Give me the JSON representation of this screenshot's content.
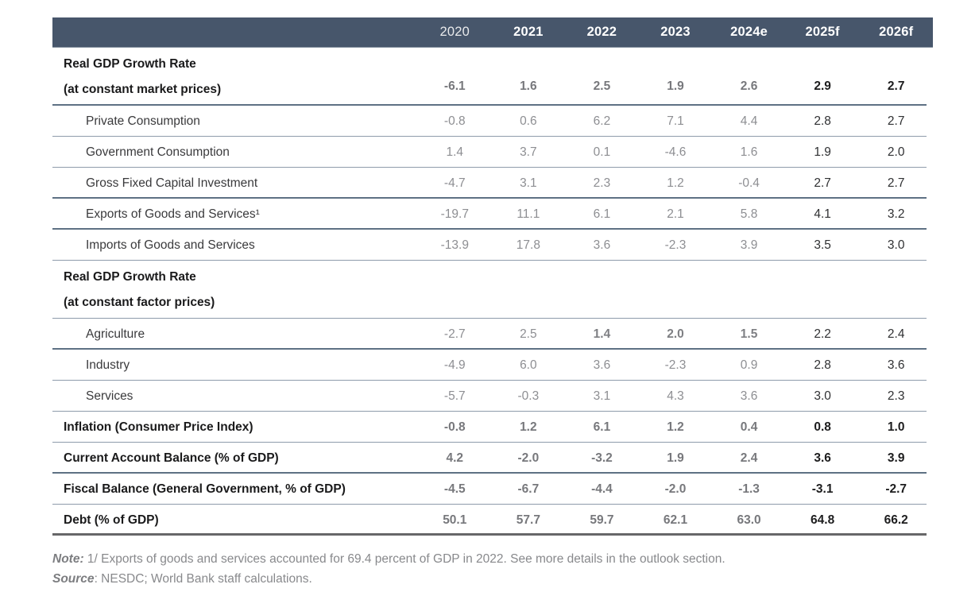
{
  "table": {
    "columns": [
      "2020",
      "2021",
      "2022",
      "2023",
      "2024e",
      "2025f",
      "2026f"
    ],
    "rows": [
      {
        "type": "section",
        "lines": [
          "Real GDP Growth Rate",
          "(at constant market prices)"
        ],
        "values": [
          "-6.1",
          "1.6",
          "2.5",
          "1.9",
          "2.6",
          "2.9",
          "2.7"
        ],
        "border": "thick"
      },
      {
        "type": "sub",
        "label": "Private Consumption",
        "values": [
          "-0.8",
          "0.6",
          "6.2",
          "7.1",
          "4.4",
          "2.8",
          "2.7"
        ],
        "border": "thin"
      },
      {
        "type": "sub",
        "label": "Government Consumption",
        "values": [
          "1.4",
          "3.7",
          "0.1",
          "-4.6",
          "1.6",
          "1.9",
          "2.0"
        ],
        "border": "thin"
      },
      {
        "type": "sub",
        "label": "Gross Fixed Capital Investment",
        "values": [
          "-4.7",
          "3.1",
          "2.3",
          "1.2",
          "-0.4",
          "2.7",
          "2.7"
        ],
        "border": "thick"
      },
      {
        "type": "sub",
        "label": "Exports of Goods and Services¹",
        "values": [
          "-19.7",
          "11.1",
          "6.1",
          "2.1",
          "5.8",
          "4.1",
          "3.2"
        ],
        "border": "thick"
      },
      {
        "type": "sub",
        "label": "Imports of Goods and Services",
        "values": [
          "-13.9",
          "17.8",
          "3.6",
          "-2.3",
          "3.9",
          "3.5",
          "3.0"
        ],
        "border": "thin"
      },
      {
        "type": "section",
        "lines": [
          "Real GDP Growth Rate",
          "(at constant factor prices)"
        ],
        "values": [
          "",
          "",
          "",
          "",
          "",
          "",
          ""
        ],
        "border": "thin"
      },
      {
        "type": "sub",
        "label": "Agriculture",
        "values": [
          "-2.7",
          "2.5",
          "1.4",
          "2.0",
          "1.5",
          "2.2",
          "2.4"
        ],
        "bold_cells": [
          2,
          3,
          4
        ],
        "border": "thick"
      },
      {
        "type": "sub",
        "label": "Industry",
        "values": [
          "-4.9",
          "6.0",
          "3.6",
          "-2.3",
          "0.9",
          "2.8",
          "3.6"
        ],
        "border": "thin"
      },
      {
        "type": "sub",
        "label": "Services",
        "values": [
          "-5.7",
          "-0.3",
          "3.1",
          "4.3",
          "3.6",
          "3.0",
          "2.3"
        ],
        "border": "thin"
      },
      {
        "type": "boldrow",
        "label": "Inflation (Consumer Price Index)",
        "values": [
          "-0.8",
          "1.2",
          "6.1",
          "1.2",
          "0.4",
          "0.8",
          "1.0"
        ],
        "border": "thin"
      },
      {
        "type": "boldrow",
        "label": "Current Account Balance (% of GDP)",
        "values": [
          "4.2",
          "-2.0",
          "-3.2",
          "1.9",
          "2.4",
          "3.6",
          "3.9"
        ],
        "border": "thick"
      },
      {
        "type": "boldrow",
        "label": "Fiscal Balance (General Government, % of GDP)",
        "values": [
          "-4.5",
          "-6.7",
          "-4.4",
          "-2.0",
          "-1.3",
          "-3.1",
          "-2.7"
        ],
        "border": "thin"
      },
      {
        "type": "boldrow",
        "label": "Debt (% of GDP)",
        "values": [
          "50.1",
          "57.7",
          "59.7",
          "62.1",
          "63.0",
          "64.8",
          "66.2"
        ],
        "border": "final"
      }
    ]
  },
  "note": {
    "label": "Note:",
    "text": "1/ Exports of goods and services accounted for 69.4 percent of GDP in 2022. See more details in the outlook section."
  },
  "source": {
    "label": "Source",
    "text": ": NESDC; World Bank staff calculations."
  },
  "colors": {
    "header_bg": "#47566B",
    "header_text": "#FFFFFF",
    "thin_rule": "#8E9BAB",
    "thick_rule": "#5E7184",
    "final_rule": "#676769",
    "value_gray": "#8D8E92",
    "value_dark": "#1D1D1E",
    "note_gray": "#88898C"
  }
}
